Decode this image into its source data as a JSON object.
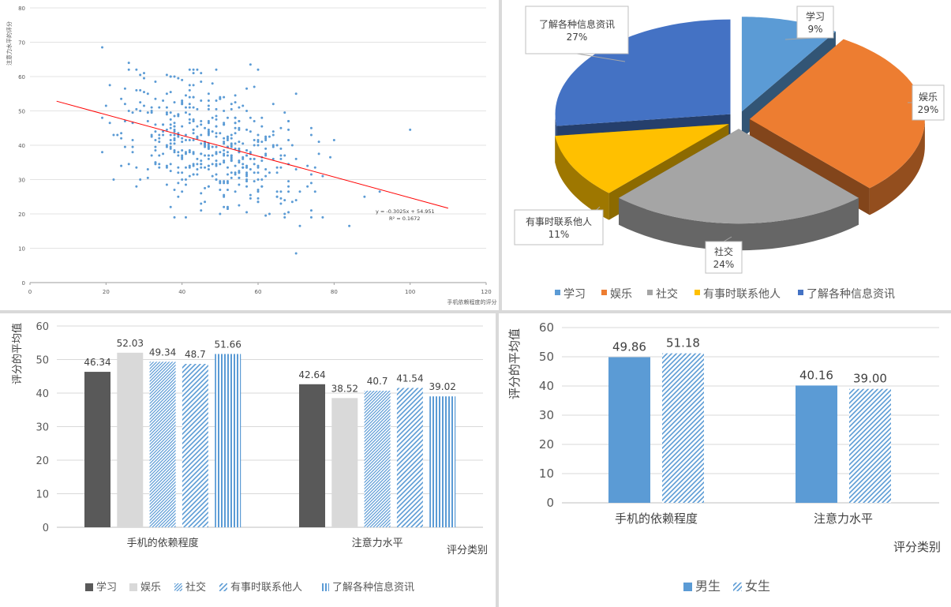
{
  "chart_data": [
    {
      "type": "scatter",
      "title": "",
      "xlabel": "手机依赖程度的评分",
      "ylabel": "注意力水平的评分",
      "xlim": [
        0,
        120
      ],
      "ylim": [
        0,
        80
      ],
      "xticks": [
        0,
        20,
        40,
        60,
        80,
        100,
        120
      ],
      "yticks": [
        0,
        10,
        20,
        30,
        40,
        50,
        60,
        70,
        80
      ],
      "trendline": {
        "slope": -0.3025,
        "intercept": 54.951,
        "x_range": [
          7,
          110
        ],
        "color": "#ff0000"
      },
      "equation_label": "y = -0.3025x + 54.951",
      "r2_label": "R² = 0.1672",
      "point_color": "#5b9bd5",
      "point_count": 500,
      "outlier_points": [
        {
          "x": 19,
          "y": 68.5
        },
        {
          "x": 100,
          "y": 44.5
        },
        {
          "x": 70,
          "y": 8.5
        },
        {
          "x": 71,
          "y": 16.5
        },
        {
          "x": 84,
          "y": 16.5
        },
        {
          "x": 88,
          "y": 25
        },
        {
          "x": 92,
          "y": 26.5
        },
        {
          "x": 58,
          "y": 63.5
        },
        {
          "x": 26,
          "y": 64
        },
        {
          "x": 22,
          "y": 30
        }
      ],
      "grid": true
    },
    {
      "type": "pie",
      "style": "3d-exploded",
      "labels": [
        "学习",
        "娱乐",
        "社交",
        "有事时联系他人",
        "了解各种信息资讯"
      ],
      "values": [
        9,
        29,
        24,
        11,
        27
      ],
      "data_labels": [
        "9%",
        "29%",
        "24%",
        "11%",
        "27%"
      ],
      "colors": [
        "#5b9bd5",
        "#ed7d31",
        "#a5a5a5",
        "#ffc000",
        "#4472c4"
      ],
      "legend": "bottom"
    },
    {
      "type": "bar",
      "categories": [
        "手机的依赖程度",
        "注意力水平"
      ],
      "series": [
        {
          "name": "学习",
          "values": [
            46.34,
            42.64
          ],
          "color": "#595959",
          "pattern": "solid"
        },
        {
          "name": "娱乐",
          "values": [
            52.03,
            38.52
          ],
          "color": "#d9d9d9",
          "pattern": "solid"
        },
        {
          "name": "社交",
          "values": [
            49.34,
            40.7
          ],
          "color": "#5b9bd5",
          "pattern": "diag-fine"
        },
        {
          "name": "有事时联系他人",
          "values": [
            48.7,
            41.54
          ],
          "color": "#5b9bd5",
          "pattern": "diag"
        },
        {
          "name": "了解各种信息资讯",
          "values": [
            51.66,
            39.02
          ],
          "color": "#5b9bd5",
          "pattern": "vertical"
        }
      ],
      "value_labels": [
        [
          "46.34",
          "52.03",
          "49.34",
          "48.7",
          "51.66"
        ],
        [
          "42.64",
          "38.52",
          "40.7",
          "41.54",
          "39.02"
        ]
      ],
      "xlabel": "评分类别",
      "ylabel": "评分的平均值",
      "ylim": [
        0,
        60
      ],
      "yticks": [
        0,
        10,
        20,
        30,
        40,
        50,
        60
      ],
      "grid": true,
      "legend": "bottom"
    },
    {
      "type": "bar",
      "categories": [
        "手机的依赖程度",
        "注意力水平"
      ],
      "series": [
        {
          "name": "男生",
          "values": [
            49.86,
            40.16
          ],
          "color": "#5b9bd5",
          "pattern": "solid"
        },
        {
          "name": "女生",
          "values": [
            51.18,
            39.0
          ],
          "color": "#5b9bd5",
          "pattern": "diag"
        }
      ],
      "value_labels": [
        [
          "49.86",
          "51.18"
        ],
        [
          "40.16",
          "39.00"
        ]
      ],
      "xlabel": "评分类别",
      "ylabel": "评分的平均值",
      "ylim": [
        0,
        60
      ],
      "yticks": [
        0,
        10,
        20,
        30,
        40,
        50,
        60
      ],
      "grid": true,
      "legend": "bottom"
    }
  ]
}
